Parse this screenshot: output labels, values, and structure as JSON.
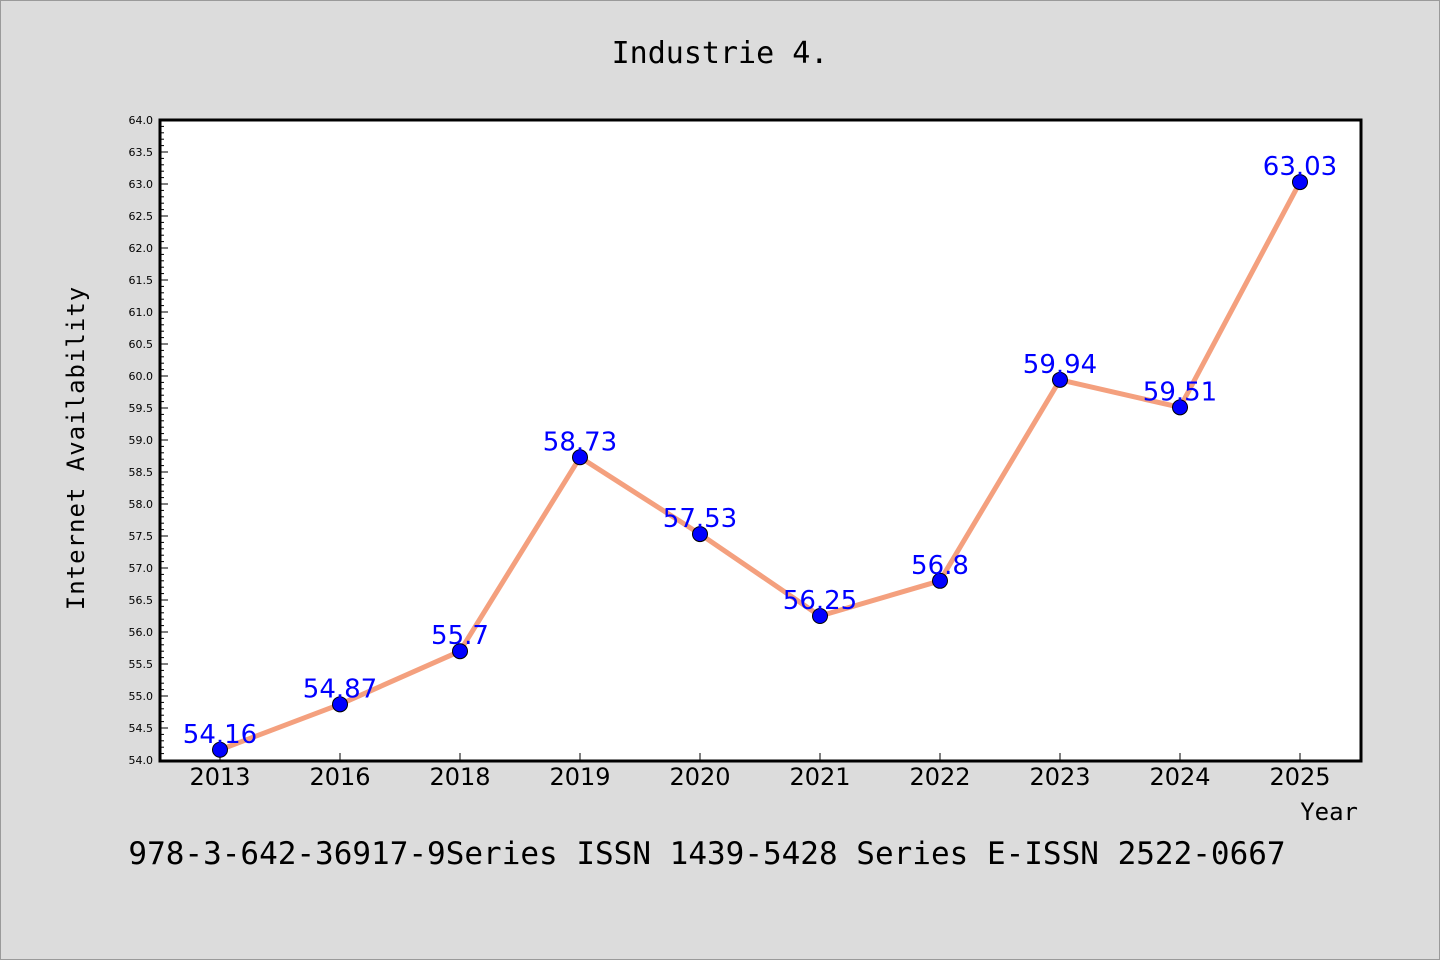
{
  "chart_data": {
    "type": "line",
    "title": "Industrie 4.",
    "xlabel": "Year",
    "ylabel": "Internet Availability",
    "categories": [
      "2013",
      "2016",
      "2018",
      "2019",
      "2020",
      "2021",
      "2022",
      "2023",
      "2024",
      "2025"
    ],
    "values": [
      54.16,
      54.87,
      55.7,
      58.73,
      57.53,
      56.25,
      56.8,
      59.94,
      59.51,
      63.03
    ],
    "data_labels": [
      "54.16",
      "54.87",
      "55.7",
      "58.73",
      "57.53",
      "56.25",
      "56.8",
      "59.94",
      "59.51",
      "63.03"
    ],
    "ylim": [
      54.0,
      64.0
    ],
    "yticks": [
      "54.0",
      "54.5",
      "55.0",
      "55.5",
      "56.0",
      "56.5",
      "57.0",
      "57.5",
      "58.0",
      "58.5",
      "59.0",
      "59.5",
      "60.0",
      "60.5",
      "61.0",
      "61.5",
      "62.0",
      "62.5",
      "63.0",
      "63.5",
      "64.0"
    ],
    "grid": false,
    "line_color": "#f4a07e",
    "marker_color": "#0000ff",
    "label_color": "#0000ff",
    "background_color": "#dcdcdc",
    "plot_background": "#ffffff"
  },
  "caption": "978-3-642-36917-9Series ISSN 1439-5428 Series E-ISSN 2522-0667"
}
